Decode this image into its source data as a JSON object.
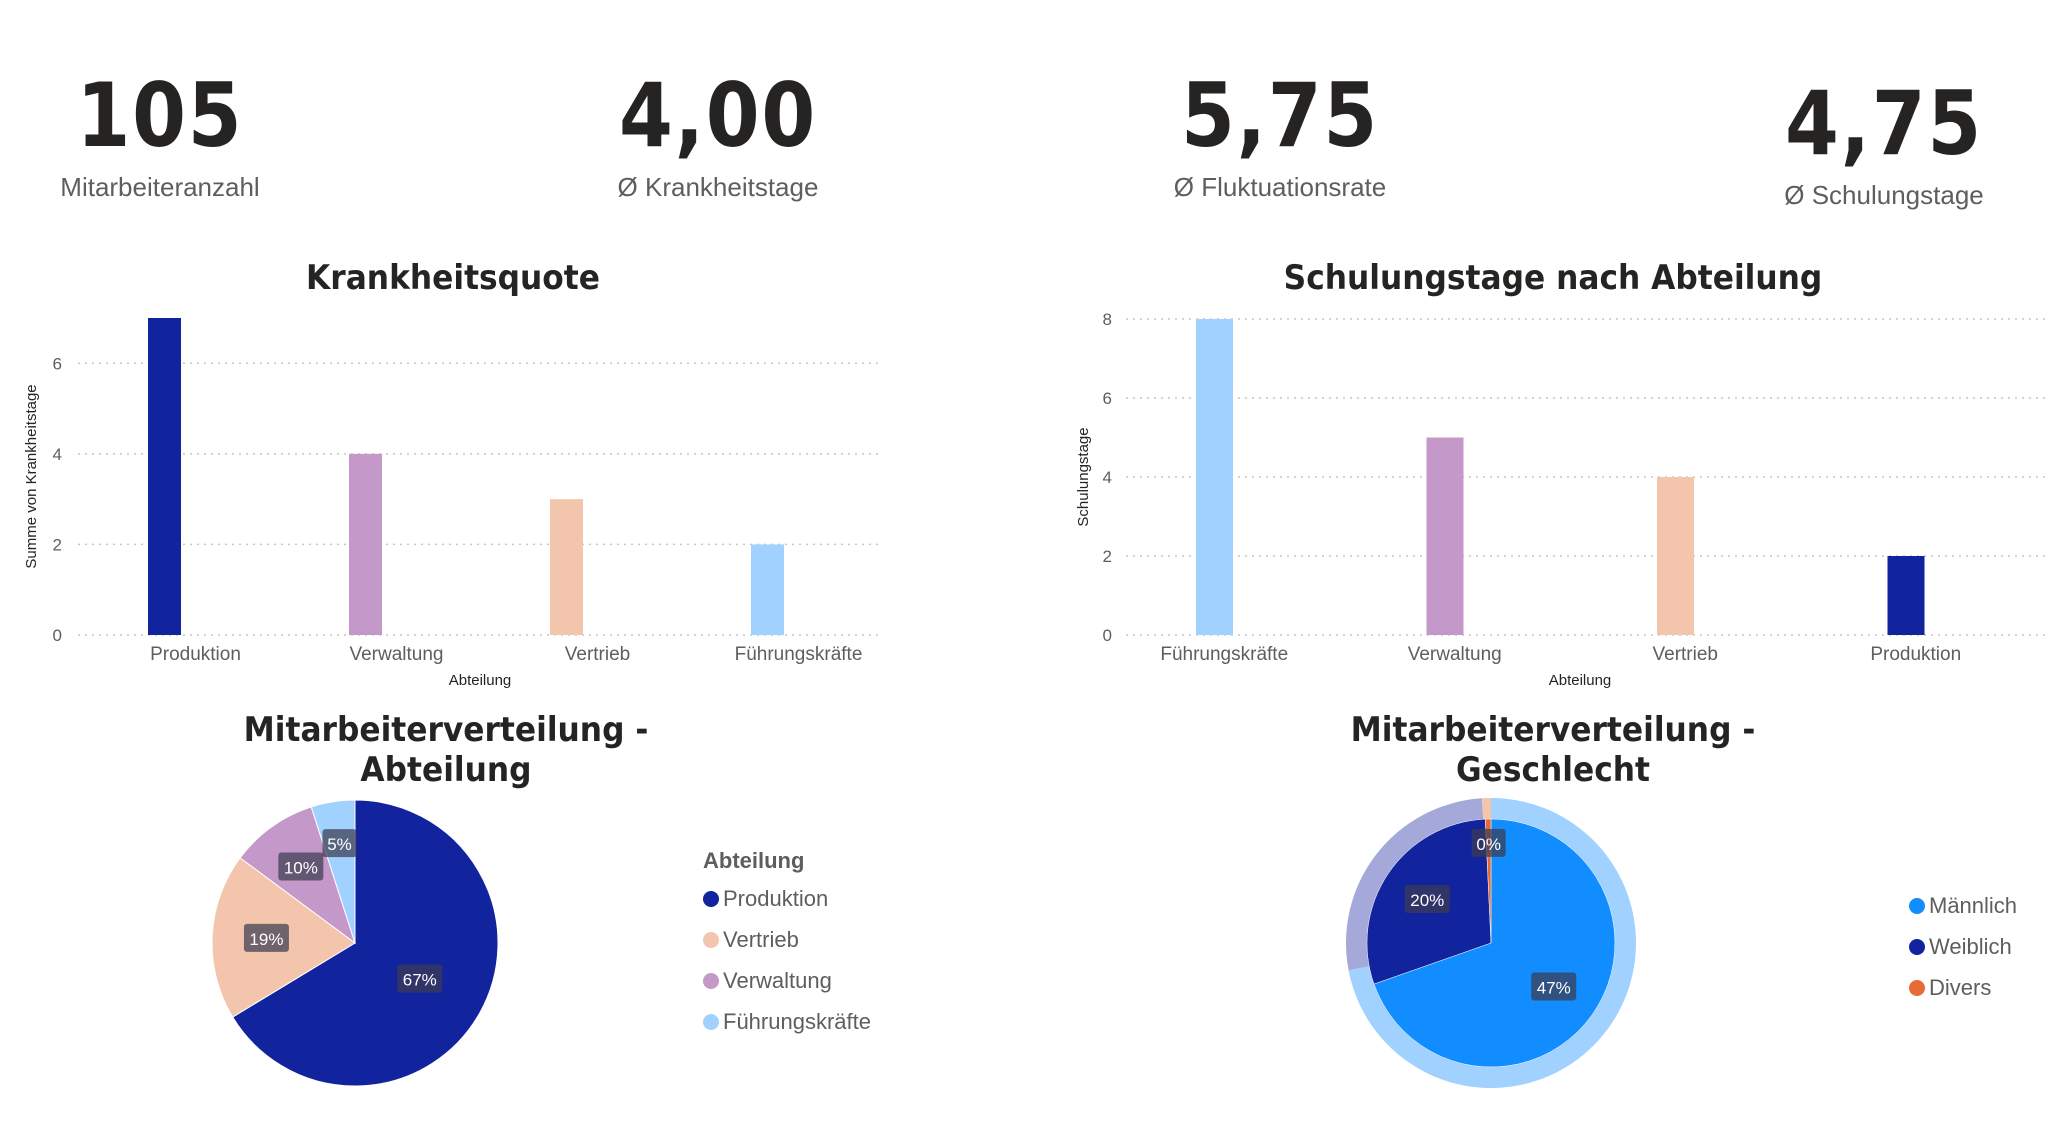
{
  "kpis": [
    {
      "value": "105",
      "label": "Mitarbeiteranzahl"
    },
    {
      "value": "4,00",
      "label": "Ø Krankheitstage"
    },
    {
      "value": "5,75",
      "label": "Ø Fluktuationsrate"
    },
    {
      "value": "4,75",
      "label": "Ø Schulungstage"
    }
  ],
  "colors": {
    "navy": "#12239e",
    "lilac": "#c499c9",
    "peach": "#f4c5ad",
    "lightblue": "#a0d1ff",
    "blue": "#118dff",
    "lavender": "#a4a9d9",
    "orange": "#e66c37"
  },
  "chart_data": [
    {
      "type": "bar",
      "title": "Krankheitsquote",
      "xlabel": "Abteilung",
      "ylabel": "Summe von Krankheitstage",
      "categories": [
        "Produktion",
        "Verwaltung",
        "Vertrieb",
        "Führungskräfte"
      ],
      "values": [
        7,
        4,
        3,
        2
      ],
      "colors": [
        "#12239e",
        "#c499c9",
        "#f4c5ad",
        "#a0d1ff"
      ],
      "ylim": [
        0,
        7
      ],
      "yticks": [
        0,
        2,
        4,
        6
      ],
      "grid": true
    },
    {
      "type": "bar",
      "title": "Schulungstage nach Abteilung",
      "xlabel": "Abteilung",
      "ylabel": "Schulungstage",
      "categories": [
        "Führungskräfte",
        "Verwaltung",
        "Vertrieb",
        "Produktion"
      ],
      "values": [
        8,
        5,
        4,
        2
      ],
      "colors": [
        "#a0d1ff",
        "#c499c9",
        "#f4c5ad",
        "#12239e"
      ],
      "ylim": [
        0,
        8
      ],
      "yticks": [
        0,
        2,
        4,
        6,
        8
      ],
      "grid": true
    },
    {
      "type": "pie",
      "title": "Mitarbeiterverteilung - Abteilung",
      "legend_title": "Abteilung",
      "legend_position": "right",
      "slices": [
        {
          "label": "Produktion",
          "value": 67,
          "text": "67%",
          "color": "#12239e"
        },
        {
          "label": "Vertrieb",
          "value": 19,
          "text": "19%",
          "color": "#f4c5ad"
        },
        {
          "label": "Verwaltung",
          "value": 10,
          "text": "10%",
          "color": "#c499c9"
        },
        {
          "label": "Führungskräfte",
          "value": 5,
          "text": "5%",
          "color": "#a0d1ff"
        }
      ]
    },
    {
      "type": "pie",
      "title": "Mitarbeiterverteilung - Geschlecht",
      "legend_position": "right",
      "legend": [
        {
          "label": "Männlich",
          "color": "#118dff"
        },
        {
          "label": "Weiblich",
          "color": "#12239e"
        },
        {
          "label": "Divers",
          "color": "#e66c37"
        }
      ],
      "inner": [
        {
          "label": "Männlich",
          "value": 47,
          "text": "47%",
          "color": "#118dff"
        },
        {
          "label": "Weiblich",
          "value": 20,
          "text": "20%",
          "color": "#12239e"
        },
        {
          "label": "Divers",
          "value": 0.5,
          "text": "0%",
          "color": "#e66c37"
        }
      ],
      "outer": [
        {
          "value": 72,
          "color": "#a0d1ff"
        },
        {
          "value": 27,
          "color": "#a4a9d9"
        },
        {
          "value": 1,
          "color": "#f4c5ad"
        }
      ]
    }
  ]
}
